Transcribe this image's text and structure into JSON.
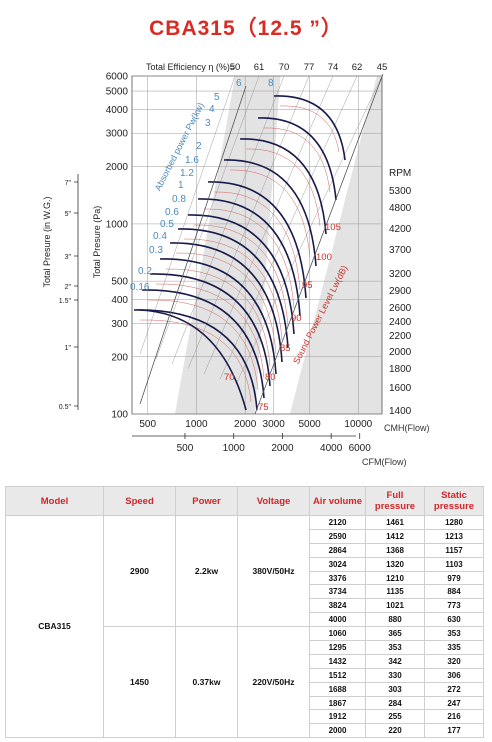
{
  "title": "CBA315（12.5 ”）",
  "chart_data": {
    "type": "line",
    "efficiency_header": "Total  Efficiency  η (%)=",
    "efficiency_values": [
      "50",
      "61",
      "70",
      "77",
      "74",
      "62",
      "45"
    ],
    "y_left_pa_label": "Total Presure (Pa)",
    "y_left_pa_ticks": [
      "6000",
      "5000",
      "4000",
      "3000",
      "2000",
      "1000",
      "500",
      "400",
      "300",
      "200",
      "100"
    ],
    "y_left_in_label": "Total Presure  (in  W.G.)",
    "y_left_in_ticks": [
      "7\"",
      "5\"",
      "3\"",
      "2\"",
      "1.5\"",
      "1\"",
      "0.5\""
    ],
    "x_cmh_ticks": [
      "500",
      "1000",
      "2000",
      "3000",
      "5000",
      "10000"
    ],
    "x_cmh_label": "CMH(Flow)",
    "x_cfm_ticks": [
      "500",
      "1000",
      "2000",
      "4000",
      "6000"
    ],
    "x_cfm_label": "CFM(Flow)",
    "rpm_label": "RPM",
    "rpm_values": [
      "5300",
      "4800",
      "4200",
      "3700",
      "3200",
      "2900",
      "2600",
      "2400",
      "2200",
      "2000",
      "1800",
      "1600",
      "1400"
    ],
    "power_label": "Absorbed power Pw(kw)",
    "power_values": [
      "6",
      "8",
      "5",
      "4",
      "3",
      "2",
      "1.6",
      "1.2",
      "1",
      "0.8",
      "0.6",
      "0.5",
      "0.4",
      "0.3",
      "0.2",
      "0.16"
    ],
    "sound_label": "Sound Power Level Lw(dB)",
    "sound_values": [
      "105",
      "100",
      "95",
      "90",
      "85",
      "80",
      "75",
      "70"
    ]
  },
  "table": {
    "headers": [
      "Model",
      "Speed",
      "Power",
      "Voltage",
      "Air volume",
      "Full pressure",
      "Static pressure"
    ],
    "model": "CBA315",
    "groups": [
      {
        "speed": "2900",
        "power": "2.2kw",
        "voltage": "380V/50Hz",
        "rows": [
          [
            "2120",
            "1461",
            "1280"
          ],
          [
            "2590",
            "1412",
            "1213"
          ],
          [
            "2864",
            "1368",
            "1157"
          ],
          [
            "3024",
            "1320",
            "1103"
          ],
          [
            "3376",
            "1210",
            "979"
          ],
          [
            "3734",
            "1135",
            "884"
          ],
          [
            "3824",
            "1021",
            "773"
          ],
          [
            "4000",
            "880",
            "630"
          ]
        ]
      },
      {
        "speed": "1450",
        "power": "0.37kw",
        "voltage": "220V/50Hz",
        "rows": [
          [
            "1060",
            "365",
            "353"
          ],
          [
            "1295",
            "353",
            "335"
          ],
          [
            "1432",
            "342",
            "320"
          ],
          [
            "1512",
            "330",
            "306"
          ],
          [
            "1688",
            "303",
            "272"
          ],
          [
            "1867",
            "284",
            "247"
          ],
          [
            "1912",
            "255",
            "216"
          ],
          [
            "2000",
            "220",
            "177"
          ]
        ]
      }
    ]
  },
  "colors": {
    "title": "#d92b24",
    "header_text": "#d0262a",
    "header_bg": "#e9e9e9",
    "plot_background": "#e3e3e3",
    "blue_labels": "#4a8bbf",
    "red_labels": "#c8332a",
    "curves": "#1a1a4a"
  }
}
